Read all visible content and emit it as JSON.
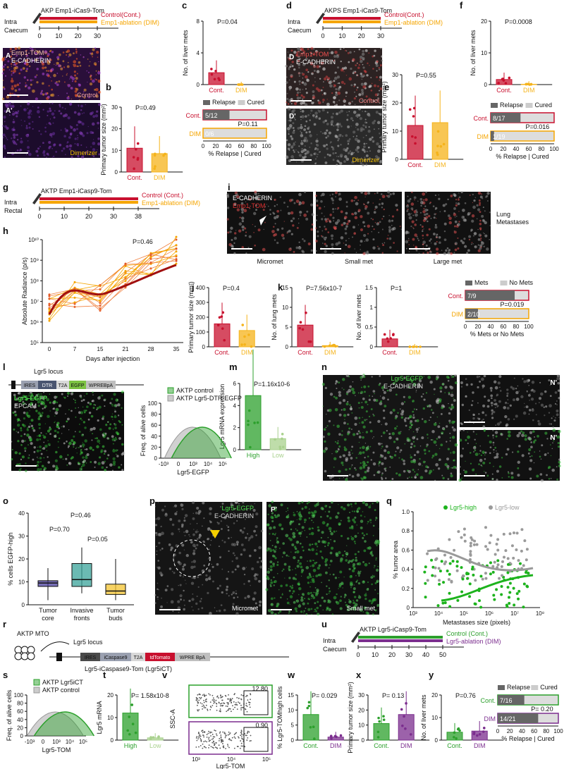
{
  "panel_letters": [
    "a",
    "b",
    "c",
    "d",
    "e",
    "f",
    "g",
    "h",
    "i",
    "j",
    "k",
    "l",
    "m",
    "n",
    "o",
    "p",
    "q",
    "r",
    "s",
    "t",
    "u",
    "v",
    "w",
    "x",
    "y"
  ],
  "schemes": {
    "a": {
      "route": "Intra\nCaecum",
      "model": "AKP Emp1-iCas9-Tom",
      "ctrl": "Control(Cont.)",
      "dim": "Emp1-ablation (DIM)",
      "ticks": [
        "0",
        "10",
        "20",
        "30"
      ]
    },
    "d": {
      "route": "Intra\nCaecum",
      "model": "AKPS Emp1-iCas9-Tom",
      "ctrl": "Control(Cont.)",
      "dim": "Emp1-ablation (DIM)",
      "ticks": [
        "0",
        "10",
        "20",
        "30"
      ]
    },
    "g": {
      "route": "Intra\nRectal",
      "model": "AKTP Emp1-iCasp9-Tom",
      "ctrl": "Control (Cont.)",
      "dim": "Emp1-ablation (DIM)",
      "ticks": [
        "0",
        "10",
        "20",
        "30",
        "38"
      ]
    },
    "u": {
      "route": "Intra\nCaecum",
      "model": "AKTP Lgr5-iCasp9-Tom",
      "ctrl": "Control (Cont.)",
      "dim": "Lgr5-ablation (DIM)",
      "ticks": [
        "0",
        "10",
        "20",
        "30",
        "40",
        "50"
      ]
    }
  },
  "images": {
    "a_top": {
      "line1": "Emp1-TOM",
      "line2": "E-CADHERIN",
      "corner": "A",
      "cond": "Control"
    },
    "a_bot": {
      "corner": "A'",
      "cond": "Dimerizer"
    },
    "d_top": {
      "line1": "Emp1-TOM",
      "line2": "E-CADHERIN",
      "corner": "D",
      "cond": "Control"
    },
    "d_bot": {
      "corner": "D'",
      "cond": "Dimerizer"
    },
    "i": {
      "line1": "E-CADHERIN",
      "line2": "Emp1-TOM",
      "labels": [
        "Micromet",
        "Small met",
        "Large met"
      ],
      "side": "Lung\nMetastases"
    },
    "l": {
      "locus": "Lgr5 locus",
      "cassette": [
        "IRES",
        "DTR",
        "T2A",
        "EGFP",
        "WPREBpA"
      ],
      "line1": "Lgr5-EGFP",
      "line2": "EPCAM"
    },
    "n": {
      "line1": "Lgr5-EGFP",
      "line2": "E-CADHERIN",
      "inset": "N'"
    },
    "p": {
      "line1": "Lgr5-EGFP",
      "line2": "E-CADHERIN",
      "corner": "P'",
      "labels": [
        "Micromet",
        "Small met"
      ]
    },
    "r": {
      "model": "AKTP MTO",
      "locus": "Lgr5 locus",
      "cassette": [
        "IRES",
        "iCaspase9",
        "T2A",
        "tdTomato",
        "WPRE BpA"
      ],
      "caption": "Lgr5-iCaspase9-Tom (Lgr5iCT)"
    }
  },
  "stats": {
    "b": "P=0.49",
    "c": "P=0.04",
    "c_bar": "P=0.11",
    "e": "P=0.55",
    "f": "P=0.0008",
    "f_bar": "P=0.016",
    "h": "P=0.46",
    "j": "P=0.4",
    "k1": "P=7.56x10-7",
    "k2": "P=1",
    "k_bar": "P=0.019",
    "m": "P=1.16x10-6",
    "o1": "P=0.46",
    "o2": "P=0.70",
    "o3": "P=0.05",
    "t": "P= 1.58x10-8",
    "w": "P= 0.029",
    "x": "P= 0.13",
    "y": "P=0.76",
    "y_bar": "P= 0.20"
  },
  "chart_data": [
    {
      "panel": "b",
      "type": "bar",
      "categories": [
        "Cont.",
        "DIM"
      ],
      "values": [
        11,
        8.5
      ],
      "ylabel": "Primary tumor size (mm²)",
      "ylim": [
        0,
        30
      ],
      "yticks": [
        "0",
        "10",
        "20",
        "30"
      ],
      "colors": [
        "#c8102e",
        "#f5b31a"
      ]
    },
    {
      "panel": "c",
      "type": "bar",
      "categories": [
        "Cont.",
        "DIM"
      ],
      "values": [
        1.5,
        0
      ],
      "ylabel": "No. of liver mets",
      "ylim": [
        0,
        8
      ],
      "yticks": [
        "0",
        "4",
        "8"
      ],
      "colors": [
        "#c8102e",
        "#f5b31a"
      ]
    },
    {
      "panel": "c-bar",
      "type": "bar",
      "orientation": "horizontal",
      "legend": [
        "Relapse",
        "Cured"
      ],
      "rows": [
        {
          "label": "Cont.",
          "relapse_pct": 41.7,
          "text": "5/12"
        },
        {
          "label": "DIM",
          "relapse_pct": 0,
          "text": "0/6"
        }
      ],
      "xlabel": "% Relapse | Cured",
      "xticks": [
        "0",
        "20",
        "40",
        "60",
        "80",
        "100"
      ]
    },
    {
      "panel": "e",
      "type": "bar",
      "categories": [
        "Cont.",
        "DIM"
      ],
      "values": [
        12,
        13
      ],
      "ylabel": "Primary tumor size (mm²)",
      "ylim": [
        0,
        30
      ],
      "yticks": [
        "0",
        "10",
        "20",
        "30"
      ],
      "colors": [
        "#c8102e",
        "#f5b31a"
      ]
    },
    {
      "panel": "f",
      "type": "bar",
      "categories": [
        "Cont.",
        "DIM"
      ],
      "values": [
        1.6,
        0.1
      ],
      "ylabel": "No. of liver mets",
      "ylim": [
        0,
        20
      ],
      "yticks": [
        "0",
        "10",
        "20"
      ],
      "colors": [
        "#c8102e",
        "#f5b31a"
      ]
    },
    {
      "panel": "f-bar",
      "type": "bar",
      "orientation": "horizontal",
      "legend": [
        "Relapse",
        "Cured"
      ],
      "rows": [
        {
          "label": "Cont.",
          "relapse_pct": 47,
          "text": "8/17"
        },
        {
          "label": "DIM",
          "relapse_pct": 5.3,
          "text": "1/19"
        }
      ],
      "xlabel": "% Relapse | Cured",
      "xticks": [
        "0",
        "20",
        "40",
        "60",
        "80",
        "100"
      ]
    },
    {
      "panel": "h",
      "type": "line",
      "ylabel": "Absolute Radiance (p/s)",
      "xlabel": "Days after injection",
      "xticks": [
        "0",
        "7",
        "15",
        "21",
        "28",
        "35"
      ],
      "yticks": [
        "10⁵",
        "10⁶",
        "10⁷",
        "10⁸",
        "10⁹",
        "10¹⁰"
      ]
    },
    {
      "panel": "j",
      "type": "bar",
      "categories": [
        "Cont.",
        "DIM"
      ],
      "values": [
        155,
        110
      ],
      "ylabel": "Primary tumor size (mm²)",
      "ylim": [
        0,
        400
      ],
      "yticks": [
        "0",
        "100",
        "200",
        "300",
        "400"
      ],
      "colors": [
        "#c8102e",
        "#f5b31a"
      ]
    },
    {
      "panel": "k1",
      "type": "bar",
      "categories": [
        "Cont.",
        "DIM"
      ],
      "values": [
        5.5,
        0.3
      ],
      "ylabel": "No. of lung mets",
      "ylim": [
        0,
        15
      ],
      "yticks": [
        "0",
        "5",
        "10",
        "15"
      ],
      "colors": [
        "#c8102e",
        "#f5b31a"
      ]
    },
    {
      "panel": "k2",
      "type": "bar",
      "categories": [
        "Cont.",
        "DIM"
      ],
      "values": [
        0.2,
        0
      ],
      "ylabel": "No. of liver mets",
      "ylim": [
        0,
        1.5
      ],
      "yticks": [
        "0",
        "0.5",
        "1",
        "1.5"
      ],
      "colors": [
        "#c8102e",
        "#f5b31a"
      ]
    },
    {
      "panel": "k-bar",
      "type": "bar",
      "orientation": "horizontal",
      "legend": [
        "Mets",
        "No Mets"
      ],
      "rows": [
        {
          "label": "Cont.",
          "relapse_pct": 77.8,
          "text": "7/9"
        },
        {
          "label": "DIM",
          "relapse_pct": 20,
          "text": "2/10"
        }
      ],
      "xlabel": "% Mets or No Mets",
      "xticks": [
        "0",
        "20",
        "40",
        "60",
        "80",
        "100"
      ]
    },
    {
      "panel": "l",
      "type": "area",
      "legend": [
        "AKTP control",
        "AKTP Lgr5-DTR-EGFP"
      ],
      "ylabel": "Freq. of alive cells",
      "xlabel": "Lgr5-EGFP",
      "yticks": [
        "0",
        "20",
        "40",
        "60",
        "80",
        "100"
      ],
      "xticks": [
        "-10³",
        "0",
        "10³",
        "10⁴",
        "10⁵"
      ]
    },
    {
      "panel": "m",
      "type": "bar",
      "categories": [
        "High",
        "Low"
      ],
      "values": [
        4.9,
        1
      ],
      "ylabel": "Lgr5 mRNA expression",
      "xlabel": "Lgr5-EGFP",
      "ylim": [
        0,
        6
      ],
      "yticks": [
        "0",
        "2",
        "4",
        "6"
      ],
      "colors": [
        "#2ca02c",
        "#a9d18e"
      ]
    },
    {
      "panel": "o",
      "type": "box",
      "categories": [
        "Tumor core",
        "Invasive fronts",
        "Tumor buds"
      ],
      "ylabel": "% cells EGFP-high",
      "ylim": [
        0,
        40
      ],
      "yticks": [
        "0",
        "10",
        "20",
        "30",
        "40"
      ],
      "medians": [
        9.5,
        11,
        6
      ],
      "q1": [
        8,
        8,
        4.5
      ],
      "q3": [
        10.5,
        18,
        9
      ],
      "whisker_low": [
        2,
        5,
        2
      ],
      "whisker_high": [
        16,
        25,
        20
      ],
      "colors": [
        "#4b3f9f",
        "#3aa39a",
        "#f4c430"
      ]
    },
    {
      "panel": "q",
      "type": "scatter",
      "legend": [
        "Lgr5-high",
        "Lgr5-low"
      ],
      "ylabel": "% tumor area",
      "xlabel": "Metastases size (pixels)",
      "yticks": [
        "0",
        "0.2",
        "0.4",
        "0.6",
        "0.8",
        "1.0"
      ],
      "xticks": [
        "10³",
        "10⁴",
        "10⁵",
        "10⁶",
        "10⁷",
        "10⁸"
      ]
    },
    {
      "panel": "s",
      "type": "area",
      "legend": [
        "AKTP Lgr5iCT",
        "AKTP control"
      ],
      "ylabel": "Freq. of alive cells",
      "xlabel": "Lgr5-TOM",
      "yticks": [
        "0",
        "20",
        "40",
        "60",
        "80",
        "100"
      ],
      "xticks": [
        "-10³",
        "0",
        "10³",
        "10⁴",
        "10⁵"
      ]
    },
    {
      "panel": "t",
      "type": "bar",
      "categories": [
        "High",
        "Low"
      ],
      "values": [
        12,
        1
      ],
      "ylabel": "Lgr5 mRNA",
      "xlabel": "Lgr5-TOM",
      "ylim": [
        0,
        20
      ],
      "yticks": [
        "0",
        "10",
        "20"
      ],
      "colors": [
        "#2ca02c",
        "#a9d18e"
      ]
    },
    {
      "panel": "v",
      "type": "scatter",
      "ylabel": "SSC-A",
      "xlabel": "Lgr5-TOM",
      "gates": [
        "12.80",
        "0.90"
      ],
      "yticks": [
        "0",
        "10³",
        "10⁴",
        "10⁵"
      ],
      "xticks": [
        "10³",
        "10⁴",
        "10⁵"
      ]
    },
    {
      "panel": "w",
      "type": "bar",
      "categories": [
        "Cont.",
        "DIM"
      ],
      "values": [
        8.5,
        1
      ],
      "ylabel": "% Lgr5-TOMhigh cells",
      "ylim": [
        0,
        15
      ],
      "yticks": [
        "0",
        "5",
        "10",
        "15"
      ],
      "colors": [
        "#2ca02c",
        "#7b2d8e"
      ]
    },
    {
      "panel": "x",
      "type": "bar",
      "categories": [
        "Cont.",
        "DIM"
      ],
      "values": [
        11,
        17
      ],
      "ylabel": "Primary tumor size (mm²)",
      "ylim": [
        0,
        30
      ],
      "yticks": [
        "0",
        "10",
        "20",
        "30"
      ],
      "colors": [
        "#2ca02c",
        "#7b2d8e"
      ]
    },
    {
      "panel": "y",
      "type": "bar",
      "categories": [
        "Cont.",
        "DIM"
      ],
      "values": [
        3.5,
        4
      ],
      "ylabel": "No. of liver mets",
      "ylim": [
        0,
        20
      ],
      "yticks": [
        "0",
        "10",
        "20"
      ],
      "colors": [
        "#2ca02c",
        "#7b2d8e"
      ]
    },
    {
      "panel": "y-bar",
      "type": "bar",
      "orientation": "horizontal",
      "legend": [
        "Relapse",
        "Cured"
      ],
      "rows": [
        {
          "label": "Cont.",
          "relapse_pct": 43.8,
          "text": "7/16"
        },
        {
          "label": "DIM",
          "relapse_pct": 66.7,
          "text": "14/21"
        }
      ],
      "xlabel": "% Relapse | Cured",
      "xticks": [
        "0",
        "20",
        "40",
        "60",
        "80",
        "100"
      ]
    }
  ]
}
